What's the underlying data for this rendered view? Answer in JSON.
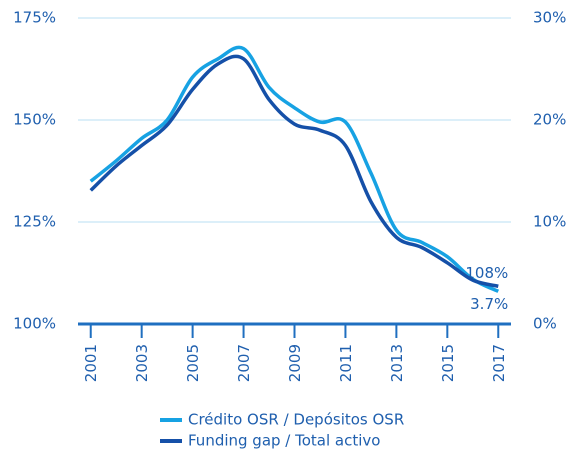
{
  "chart_data": {
    "type": "line",
    "x": [
      2001,
      2002,
      2003,
      2004,
      2005,
      2006,
      2007,
      2008,
      2009,
      2010,
      2011,
      2012,
      2013,
      2014,
      2015,
      2016,
      2017
    ],
    "xlim": [
      2000.5,
      2017.5
    ],
    "xticks": [
      2001,
      2003,
      2005,
      2007,
      2009,
      2011,
      2013,
      2015,
      2017
    ],
    "ylim": [
      100,
      175
    ],
    "yticks": [
      {
        "value": 100,
        "label": "100%"
      },
      {
        "value": 125,
        "label": "125%"
      },
      {
        "value": 150,
        "label": "150%"
      },
      {
        "value": 175,
        "label": "175%"
      }
    ],
    "y2lim": [
      0,
      30
    ],
    "y2ticks": [
      {
        "value": 0,
        "label": "0%"
      },
      {
        "value": 10,
        "label": "10%"
      },
      {
        "value": 20,
        "label": "20%"
      },
      {
        "value": 30,
        "label": "30%"
      }
    ],
    "grid": true,
    "legend": "bottom",
    "series": [
      {
        "name": "Crédito OSR / Depósitos OSR",
        "color": "#17a2e3",
        "values": [
          135,
          140,
          145.5,
          150,
          160.5,
          165,
          167.5,
          158,
          153,
          149.5,
          149.5,
          137,
          123,
          120,
          116.5,
          111,
          108
        ],
        "value_labels": [
          null,
          null,
          null,
          null,
          null,
          null,
          null,
          null,
          null,
          null,
          null,
          null,
          null,
          null,
          null,
          null,
          "108%"
        ]
      },
      {
        "name": "Funding gap / Total activo",
        "color": "#1550a8",
        "axis": "y2",
        "values": [
          13.1,
          15.5,
          17.5,
          19.5,
          23,
          25.5,
          26,
          22,
          19.6,
          19,
          17.5,
          12,
          8.5,
          7.5,
          6,
          4.3,
          3.7
        ],
        "value_labels": [
          null,
          null,
          null,
          null,
          null,
          null,
          null,
          null,
          null,
          null,
          null,
          null,
          null,
          null,
          null,
          null,
          "3.7%"
        ]
      }
    ]
  }
}
